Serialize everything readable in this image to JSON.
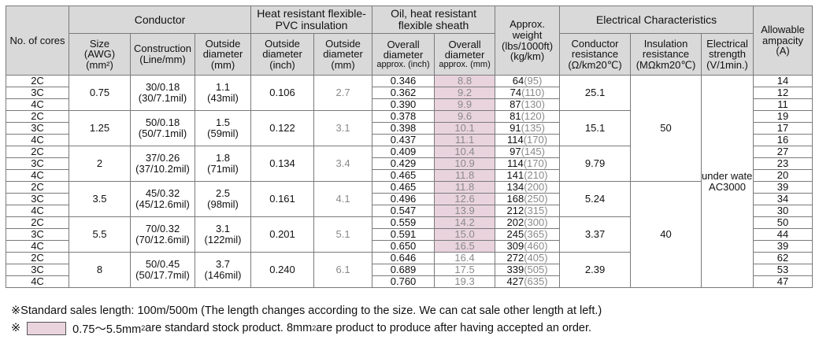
{
  "headers": {
    "cores": "No. of cores",
    "conductor": "Conductor",
    "pvc": "Heat resistant flexible-PVC insulation",
    "sheath": "Oil, heat resistant flexible sheath",
    "weight": "Approx. weight (lbs/1000ft) (kg/km)",
    "electrical": "Electrical Characteristics",
    "ampacity": "Allowable ampacity (A)",
    "size": "Size (AWG) (mm²)",
    "construction": "Construction (Line/mm)",
    "conductor_od": "Outside diameter (mm)",
    "pvc_od_inch": "Outside diameter (inch)",
    "pvc_od_mm": "Outside diameter (mm)",
    "sheath_od_inch": "Overall diameter approx. (inch)",
    "sheath_od_mm": "Overall diameter approx. (mm)",
    "cond_res": "Conductor resistance (Ω/km20℃)",
    "ins_res": "Insulation resistance (MΩkm20℃)",
    "strength": "Electrical strength (V/1min.)"
  },
  "header_lines": {
    "pvc": [
      "Heat resistant flexible-",
      "PVC insulation"
    ],
    "sheath": [
      "Oil, heat resistant",
      "flexible sheath"
    ],
    "weight": [
      "Approx.",
      "weight",
      "(lbs/1000ft)",
      "(kg/km)"
    ],
    "ampacity": [
      "Allowable",
      "ampacity",
      "(A)"
    ],
    "size": [
      "Size",
      "(AWG)",
      "(mm²)"
    ],
    "construction": [
      "Construction",
      "(Line/mm)"
    ],
    "conductor_od": [
      "Outside",
      "diameter",
      "(mm)"
    ],
    "pvc_od_inch": [
      "Outside",
      "diameter",
      "(inch)"
    ],
    "pvc_od_mm": [
      "Outside",
      "diameter",
      "(mm)"
    ],
    "sheath_od_inch": [
      "Overall",
      "diameter",
      "approx. (inch)"
    ],
    "sheath_od_mm": [
      "Overall",
      "diameter",
      "approx. (mm)"
    ],
    "cond_res": [
      "Conductor",
      "resistance",
      "(Ω/km20℃)"
    ],
    "ins_res": [
      "Insulation",
      "resistance",
      "(MΩkm20℃)"
    ],
    "strength": [
      "Electrical",
      "strength",
      "(V/1min.)"
    ]
  },
  "groups": [
    {
      "size": "0.75",
      "construction": [
        "30/0.18",
        "(30/7.1mil)"
      ],
      "conductor_od": [
        "1.1",
        "(43mil)"
      ],
      "pvc_od_inch": "0.106",
      "pvc_od_mm": "2.7",
      "cond_res": "25.1",
      "rows": [
        {
          "cores": "2C",
          "od_inch": "0.346",
          "od_mm": "8.8",
          "w_kg": "64",
          "w_lbs": "(95)",
          "amp": "14"
        },
        {
          "cores": "3C",
          "od_inch": "0.362",
          "od_mm": "9.2",
          "w_kg": "74",
          "w_lbs": "(110)",
          "amp": "12"
        },
        {
          "cores": "4C",
          "od_inch": "0.390",
          "od_mm": "9.9",
          "w_kg": "87",
          "w_lbs": "(130)",
          "amp": "11"
        }
      ]
    },
    {
      "size": "1.25",
      "construction": [
        "50/0.18",
        "(50/7.1mil)"
      ],
      "conductor_od": [
        "1.5",
        "(59mil)"
      ],
      "pvc_od_inch": "0.122",
      "pvc_od_mm": "3.1",
      "cond_res": "15.1",
      "rows": [
        {
          "cores": "2C",
          "od_inch": "0.378",
          "od_mm": "9.6",
          "w_kg": "81",
          "w_lbs": "(120)",
          "amp": "19"
        },
        {
          "cores": "3C",
          "od_inch": "0.398",
          "od_mm": "10.1",
          "w_kg": "91",
          "w_lbs": "(135)",
          "amp": "17"
        },
        {
          "cores": "4C",
          "od_inch": "0.437",
          "od_mm": "11.1",
          "w_kg": "114",
          "w_lbs": "(170)",
          "amp": "16"
        }
      ]
    },
    {
      "size": "2",
      "construction": [
        "37/0.26",
        "(37/10.2mil)"
      ],
      "conductor_od": [
        "1.8",
        "(71mil)"
      ],
      "pvc_od_inch": "0.134",
      "pvc_od_mm": "3.4",
      "cond_res": "9.79",
      "rows": [
        {
          "cores": "2C",
          "od_inch": "0.409",
          "od_mm": "10.4",
          "w_kg": "97",
          "w_lbs": "(145)",
          "amp": "27"
        },
        {
          "cores": "3C",
          "od_inch": "0.429",
          "od_mm": "10.9",
          "w_kg": "114",
          "w_lbs": "(170)",
          "amp": "23"
        },
        {
          "cores": "4C",
          "od_inch": "0.465",
          "od_mm": "11.8",
          "w_kg": "141",
          "w_lbs": "(210)",
          "amp": "20"
        }
      ]
    },
    {
      "size": "3.5",
      "construction": [
        "45/0.32",
        "(45/12.6mil)"
      ],
      "conductor_od": [
        "2.5",
        "(98mil)"
      ],
      "pvc_od_inch": "0.161",
      "pvc_od_mm": "4.1",
      "cond_res": "5.24",
      "rows": [
        {
          "cores": "2C",
          "od_inch": "0.465",
          "od_mm": "11.8",
          "w_kg": "134",
          "w_lbs": "(200)",
          "amp": "39"
        },
        {
          "cores": "3C",
          "od_inch": "0.496",
          "od_mm": "12.6",
          "w_kg": "168",
          "w_lbs": "(250)",
          "amp": "34"
        },
        {
          "cores": "4C",
          "od_inch": "0.547",
          "od_mm": "13.9",
          "w_kg": "212",
          "w_lbs": "(315)",
          "amp": "30"
        }
      ]
    },
    {
      "size": "5.5",
      "construction": [
        "70/0.32",
        "(70/12.6mil)"
      ],
      "conductor_od": [
        "3.1",
        "(122mil)"
      ],
      "pvc_od_inch": "0.201",
      "pvc_od_mm": "5.1",
      "cond_res": "3.37",
      "rows": [
        {
          "cores": "2C",
          "od_inch": "0.559",
          "od_mm": "14.2",
          "w_kg": "202",
          "w_lbs": "(300)",
          "amp": "50"
        },
        {
          "cores": "3C",
          "od_inch": "0.591",
          "od_mm": "15.0",
          "w_kg": "245",
          "w_lbs": "(365)",
          "amp": "44"
        },
        {
          "cores": "4C",
          "od_inch": "0.650",
          "od_mm": "16.5",
          "w_kg": "309",
          "w_lbs": "(460)",
          "amp": "39"
        }
      ]
    },
    {
      "size": "8",
      "construction": [
        "50/0.45",
        "(50/17.7mil)"
      ],
      "conductor_od": [
        "3.7",
        "(146mil)"
      ],
      "pvc_od_inch": "0.240",
      "pvc_od_mm": "6.1",
      "cond_res": "2.39",
      "rows": [
        {
          "cores": "2C",
          "od_inch": "0.646",
          "od_mm": "16.4",
          "w_kg": "272",
          "w_lbs": "(405)",
          "amp": "62"
        },
        {
          "cores": "3C",
          "od_inch": "0.689",
          "od_mm": "17.5",
          "w_kg": "339",
          "w_lbs": "(505)",
          "amp": "53"
        },
        {
          "cores": "4C",
          "od_inch": "0.760",
          "od_mm": "19.3",
          "w_kg": "427",
          "w_lbs": "(635)",
          "amp": "47"
        }
      ]
    }
  ],
  "insulation_resistance": [
    "50",
    "40"
  ],
  "electrical_strength": [
    "under water",
    "AC3000"
  ],
  "notes": {
    "mark": "※",
    "line1": "Standard sales length: 100m/500m (The length changes according to the size. We can cat sale other length at left.)",
    "line2_a": "0.75～5.5mm",
    "line2_sup": "2",
    "line2_b": " are standard stock product. 8mm",
    "line2_sup2": "2",
    "line2_c": " are product to produce after having accepted an order."
  },
  "colors": {
    "header_bg": "#d9d9d9",
    "stock_highlight": "#e9d3dd",
    "muted_text": "#8a8a8a"
  }
}
